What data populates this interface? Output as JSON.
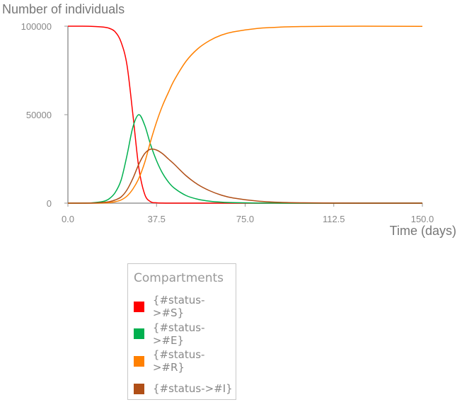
{
  "chart_data": {
    "type": "line",
    "title": "",
    "ylabel": "Number of individuals",
    "xlabel": "Time (days)",
    "xlim": [
      0,
      150
    ],
    "ylim": [
      0,
      100000
    ],
    "x_ticks": [
      "0.0",
      "37.5",
      "75.0",
      "112.5",
      "150.0"
    ],
    "x_tick_values": [
      0,
      37.5,
      75,
      112.5,
      150
    ],
    "y_ticks": [
      "0",
      "50000",
      "100000"
    ],
    "y_tick_values": [
      0,
      50000,
      100000
    ],
    "grid": false,
    "x": [
      0,
      5,
      10,
      15,
      17.5,
      20,
      22.5,
      25,
      27.5,
      30,
      32.5,
      35,
      37.5,
      40,
      42.5,
      45,
      50,
      55,
      60,
      65,
      70,
      80,
      90,
      100,
      112.5,
      125,
      150
    ],
    "series": [
      {
        "name": "{#status->#S}",
        "color": "#ff0000",
        "values": [
          100000,
          99990,
          99900,
          99500,
          98800,
          96800,
          91000,
          78000,
          50000,
          20000,
          5000,
          800,
          200,
          50,
          10,
          0,
          0,
          0,
          0,
          0,
          0,
          0,
          0,
          0,
          0,
          0,
          0
        ]
      },
      {
        "name": "{#status->#E}",
        "color": "#00b04f",
        "values": [
          0,
          20,
          150,
          1000,
          2500,
          6000,
          13000,
          27000,
          43000,
          50000,
          44000,
          33000,
          24000,
          17000,
          12000,
          8500,
          4300,
          2200,
          1100,
          550,
          280,
          70,
          20,
          5,
          0,
          0,
          0
        ]
      },
      {
        "name": "{#status->#R}",
        "color": "#ff8000",
        "values": [
          0,
          0,
          0,
          100,
          300,
          800,
          1800,
          4000,
          8000,
          14000,
          23000,
          35000,
          45800,
          55000,
          62500,
          69500,
          80200,
          87300,
          91900,
          95000,
          96800,
          98700,
          99500,
          99800,
          99950,
          99985,
          99900
        ]
      },
      {
        "name": "{#status->#I}",
        "color": "#b04f17",
        "values": [
          0,
          10,
          50,
          400,
          800,
          1800,
          3500,
          7500,
          14000,
          22000,
          28000,
          30500,
          30000,
          28000,
          25000,
          22000,
          15500,
          10500,
          7000,
          4500,
          2900,
          1200,
          450,
          180,
          50,
          15,
          0
        ]
      }
    ],
    "legend": {
      "title": "Compartments",
      "placement": "bottom-center"
    }
  }
}
